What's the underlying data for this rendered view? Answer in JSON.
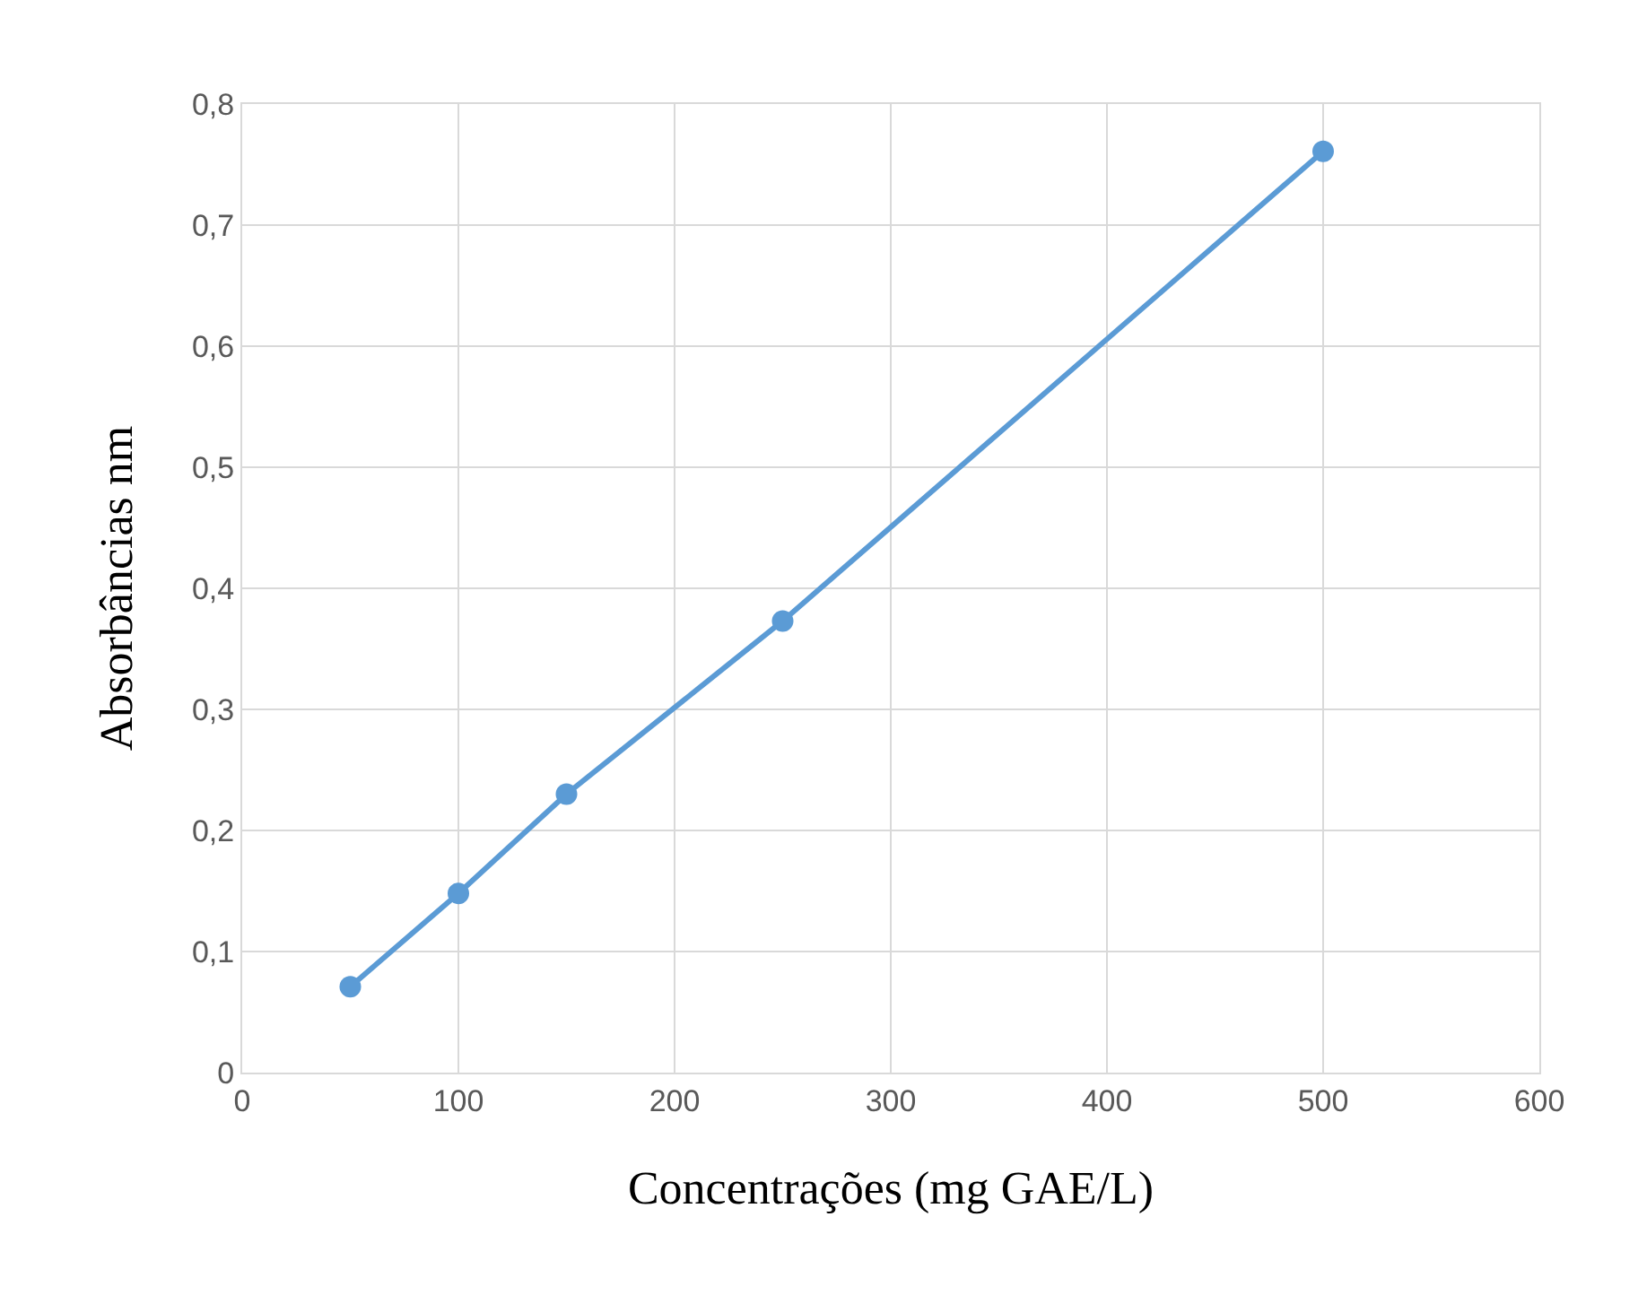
{
  "chart_data": {
    "type": "line",
    "xlabel": "Concentrações (mg GAE/L)",
    "ylabel": "Absorbâncias nm",
    "x": [
      50,
      100,
      150,
      250,
      500
    ],
    "series": [
      {
        "color": "#5b9bd5",
        "values": [
          0.071,
          0.148,
          0.23,
          0.373,
          0.761
        ]
      }
    ],
    "xlim": [
      0,
      600
    ],
    "xticks": [
      0,
      100,
      200,
      300,
      400,
      500,
      600
    ],
    "ylim": [
      0,
      0.8
    ],
    "yticks": [
      0,
      {
        "value": 0.1,
        "label": "0,1"
      },
      {
        "value": 0.2,
        "label": "0,2"
      },
      {
        "value": 0.3,
        "label": "0,3"
      },
      {
        "value": 0.4,
        "label": "0,4"
      },
      {
        "value": 0.5,
        "label": "0,5"
      },
      {
        "value": 0.6,
        "label": "0,6"
      },
      {
        "value": 0.7,
        "label": "0,7"
      },
      {
        "value": 0.8,
        "label": "0,8"
      }
    ],
    "grid": true,
    "legend": false,
    "marker": "circle",
    "line_style": "solid"
  }
}
